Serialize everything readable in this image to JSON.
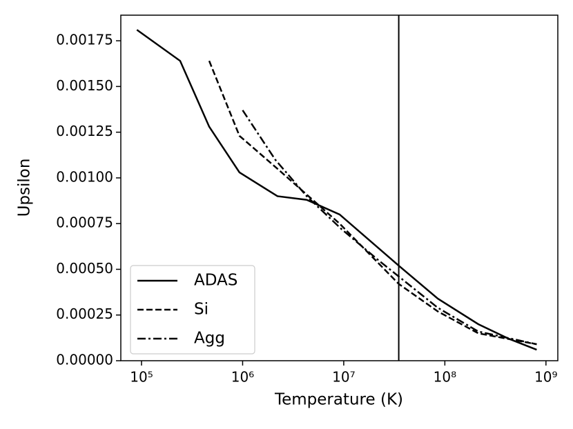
{
  "chart_data": {
    "type": "line",
    "x_label": "Temperature (K)",
    "y_label": "Upsilon",
    "xscale": "log",
    "xlim": [
      62400,
      1310000000
    ],
    "xticks": [
      {
        "value": 100000,
        "label": "10⁵"
      },
      {
        "value": 1000000,
        "label": "10⁶"
      },
      {
        "value": 10000000,
        "label": "10⁷"
      },
      {
        "value": 100000000,
        "label": "10⁸"
      },
      {
        "value": 1000000000,
        "label": "10⁹"
      }
    ],
    "ylim": [
      0,
      0.00189
    ],
    "yticks": [
      {
        "value": 0,
        "label": "0.00000"
      },
      {
        "value": 0.00025,
        "label": "0.00025"
      },
      {
        "value": 0.0005,
        "label": "0.00050"
      },
      {
        "value": 0.00075,
        "label": "0.00075"
      },
      {
        "value": 0.001,
        "label": "0.00100"
      },
      {
        "value": 0.00125,
        "label": "0.00125"
      },
      {
        "value": 0.0015,
        "label": "0.00150"
      },
      {
        "value": 0.00175,
        "label": "0.00175"
      }
    ],
    "vline": 35000000,
    "legend": "lower left",
    "series": [
      {
        "name": "ADAS",
        "color": "#000000",
        "style": "solid",
        "x": [
          90000,
          241000,
          467000,
          930000,
          2210000,
          4300000,
          9100000,
          35000000,
          85000000,
          214000000,
          430000000,
          810000000
        ],
        "values": [
          0.00181,
          0.00164,
          0.00128,
          0.00103,
          0.0009,
          0.00088,
          0.0008,
          0.00052,
          0.00034,
          0.0002,
          0.00012,
          6e-05
        ]
      },
      {
        "name": "Si",
        "color": "#000000",
        "style": "dashed",
        "x": [
          467000,
          930000,
          2210000,
          9100000,
          35000000,
          85000000,
          214000000,
          810000000
        ],
        "values": [
          0.00164,
          0.00123,
          0.00105,
          0.00075,
          0.00042,
          0.00027,
          0.00015,
          9e-05
        ]
      },
      {
        "name": "Agg",
        "color": "#000000",
        "style": "dashdot",
        "x": [
          1000000,
          2100000,
          4300000,
          9500000,
          22000000,
          85000000,
          214000000,
          810000000
        ],
        "values": [
          0.00137,
          0.0011,
          0.0009,
          0.00072,
          0.00055,
          0.00029,
          0.00016,
          9e-05
        ]
      }
    ]
  }
}
